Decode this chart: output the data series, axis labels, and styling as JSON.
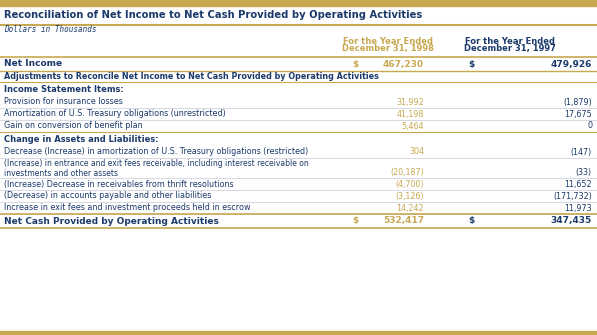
{
  "title": "Reconciliation of Net Income to Net Cash Provided by Operating Activities",
  "subtitle": "Dollars in Thousands",
  "col1_header_line1": "For the Year Ended",
  "col1_header_line2": "December 31, 1998",
  "col2_header_line1": "For the Year Ended",
  "col2_header_line2": "December 31, 1997",
  "gold": "#C8A951",
  "navy": "#1B3A6B",
  "col1_color": "#C8A951",
  "col2_color": "#1B3A6B",
  "bg_white": "#FFFFFF",
  "rows": [
    {
      "label": "Net Income",
      "val1_dollar": "$",
      "val1": "467,230",
      "val2_dollar": "$",
      "val2": "479,926",
      "bold": true,
      "type": "net",
      "indent": 0
    },
    {
      "label": "Adjustments to Reconcile Net Income to Net Cash Provided by Operating Activities",
      "val1_dollar": "",
      "val1": "",
      "val2_dollar": "",
      "val2": "",
      "bold": true,
      "type": "section_desc",
      "indent": 0
    },
    {
      "label": "Income Statement Items:",
      "val1_dollar": "",
      "val1": "",
      "val2_dollar": "",
      "val2": "",
      "bold": true,
      "type": "section_header",
      "indent": 0
    },
    {
      "label": "Provision for insurance losses",
      "val1_dollar": "",
      "val1": "31,992",
      "val2_dollar": "",
      "val2": "(1,879)",
      "bold": false,
      "type": "data",
      "indent": 0
    },
    {
      "label": "Amortization of U.S. Treasury obligations (unrestricted)",
      "val1_dollar": "",
      "val1": "41,198",
      "val2_dollar": "",
      "val2": "17,675",
      "bold": false,
      "type": "data",
      "indent": 0
    },
    {
      "label": "Gain on conversion of benefit plan",
      "val1_dollar": "",
      "val1": "5,464",
      "val2_dollar": "",
      "val2": "0",
      "bold": false,
      "type": "data",
      "indent": 0
    },
    {
      "label": "Change in Assets and Liabilities:",
      "val1_dollar": "",
      "val1": "",
      "val2_dollar": "",
      "val2": "",
      "bold": true,
      "type": "section_header",
      "indent": 0
    },
    {
      "label": "Decrease (Increase) in amortization of U.S. Treasury obligations (restricted)",
      "val1_dollar": "",
      "val1": "304",
      "val2_dollar": "",
      "val2": "(147)",
      "bold": false,
      "type": "data",
      "indent": 0
    },
    {
      "label": "(Increase) in entrance and exit fees receivable, including interest receivable on\ninvestments and other assets",
      "val1_dollar": "",
      "val1": "(20,187)",
      "val2_dollar": "",
      "val2": "(33)",
      "bold": false,
      "type": "data2",
      "indent": 0
    },
    {
      "label": "(Increase) Decrease in receivables from thrift resolutions",
      "val1_dollar": "",
      "val1": "(4,700)",
      "val2_dollar": "",
      "val2": "11,652",
      "bold": false,
      "type": "data",
      "indent": 0
    },
    {
      "label": "(Decrease) in accounts payable and other liabilities",
      "val1_dollar": "",
      "val1": "(3,126)",
      "val2_dollar": "",
      "val2": "(171,732)",
      "bold": false,
      "type": "data",
      "indent": 0
    },
    {
      "label": "Increase in exit fees and investment proceeds held in escrow",
      "val1_dollar": "",
      "val1": "14,242",
      "val2_dollar": "",
      "val2": "11,973",
      "bold": false,
      "type": "data",
      "indent": 0
    },
    {
      "label": "Net Cash Provided by Operating Activities",
      "val1_dollar": "$",
      "val1": "532,417",
      "val2_dollar": "$",
      "val2": "347,435",
      "bold": true,
      "type": "total",
      "indent": 0
    }
  ]
}
